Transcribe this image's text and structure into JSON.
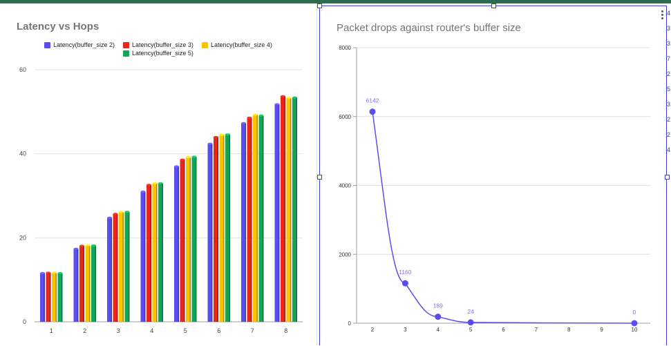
{
  "chart_data": [
    {
      "type": "bar",
      "title": "Latency vs Hops",
      "xlabel": "",
      "ylabel": "",
      "categories": [
        "1",
        "2",
        "3",
        "4",
        "5",
        "6",
        "7",
        "8"
      ],
      "ylim": [
        0,
        60
      ],
      "yticks": [
        0,
        20,
        40,
        60
      ],
      "grid": true,
      "legend": "top",
      "series": [
        {
          "name": "Latency(buffer_size 2)",
          "color": "#5b4ef0",
          "values": [
            11.6,
            17.4,
            24.8,
            31.0,
            37.0,
            42.4,
            47.3,
            51.8
          ]
        },
        {
          "name": "Latency(buffer_size 3)",
          "color": "#e8261b",
          "values": [
            11.7,
            18.1,
            25.7,
            32.6,
            38.6,
            44.0,
            48.6,
            53.7
          ]
        },
        {
          "name": "Latency(buffer_size 4)",
          "color": "#f7c400",
          "values": [
            11.7,
            18.2,
            26.1,
            33.0,
            39.2,
            44.5,
            49.3,
            53.3
          ]
        },
        {
          "name": "Latency(buffer_size 5)",
          "color": "#13a657",
          "values": [
            11.6,
            18.2,
            26.2,
            33.0,
            39.3,
            44.6,
            49.1,
            53.4
          ]
        }
      ]
    },
    {
      "type": "line",
      "title": "Packet drops against router's buffer size",
      "xlabel": "",
      "ylabel": "",
      "x": [
        2,
        3,
        4,
        5,
        10
      ],
      "xticks": [
        "2",
        "3",
        "4",
        "5",
        "6",
        "7",
        "8",
        "9",
        "10"
      ],
      "xlim": [
        2,
        10
      ],
      "ylim": [
        0,
        8000
      ],
      "yticks": [
        0,
        2000,
        4000,
        6000,
        8000
      ],
      "grid": true,
      "series": [
        {
          "color": "#5b4ef0",
          "values": [
            6142,
            1160,
            189,
            24,
            0
          ],
          "labels": [
            "6142",
            "1160",
            "189",
            "24",
            "0"
          ]
        }
      ]
    }
  ],
  "edge_strip_text": [
    "4",
    "3",
    "3",
    "7",
    "2",
    "5",
    "3",
    "2",
    "2",
    "4"
  ]
}
